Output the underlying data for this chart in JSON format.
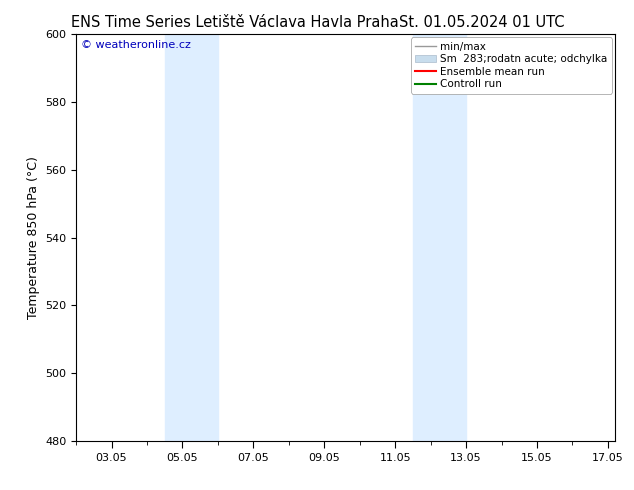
{
  "title_left": "ENS Time Series Letiště Václava Havla Praha",
  "title_right": "St. 01.05.2024 01 UTC",
  "ylabel": "Temperature 850 hPa (°C)",
  "ylim": [
    480,
    600
  ],
  "yticks": [
    480,
    500,
    520,
    540,
    560,
    580,
    600
  ],
  "xlim": [
    2.0,
    17.2
  ],
  "xtick_labels": [
    "03.05",
    "05.05",
    "07.05",
    "09.05",
    "11.05",
    "13.05",
    "15.05",
    "17.05"
  ],
  "xtick_positions": [
    3,
    5,
    7,
    9,
    11,
    13,
    15,
    17
  ],
  "shade_bands": [
    {
      "xstart": 4.5,
      "xend": 6.0
    },
    {
      "xstart": 11.5,
      "xend": 13.0
    }
  ],
  "shade_color": "#deeeff",
  "watermark": "© weatheronline.cz",
  "watermark_color": "#0000bb",
  "legend_labels": [
    "min/max",
    "Sm  283;rodatn acute; odchylka",
    "Ensemble mean run",
    "Controll run"
  ],
  "legend_line_colors": [
    "#aaaaaa",
    "#c8dded",
    "#ff0000",
    "#008000"
  ],
  "bg_color": "#ffffff",
  "title_fontsize": 10.5,
  "ylabel_fontsize": 9,
  "tick_fontsize": 8,
  "legend_fontsize": 7.5,
  "watermark_fontsize": 8
}
